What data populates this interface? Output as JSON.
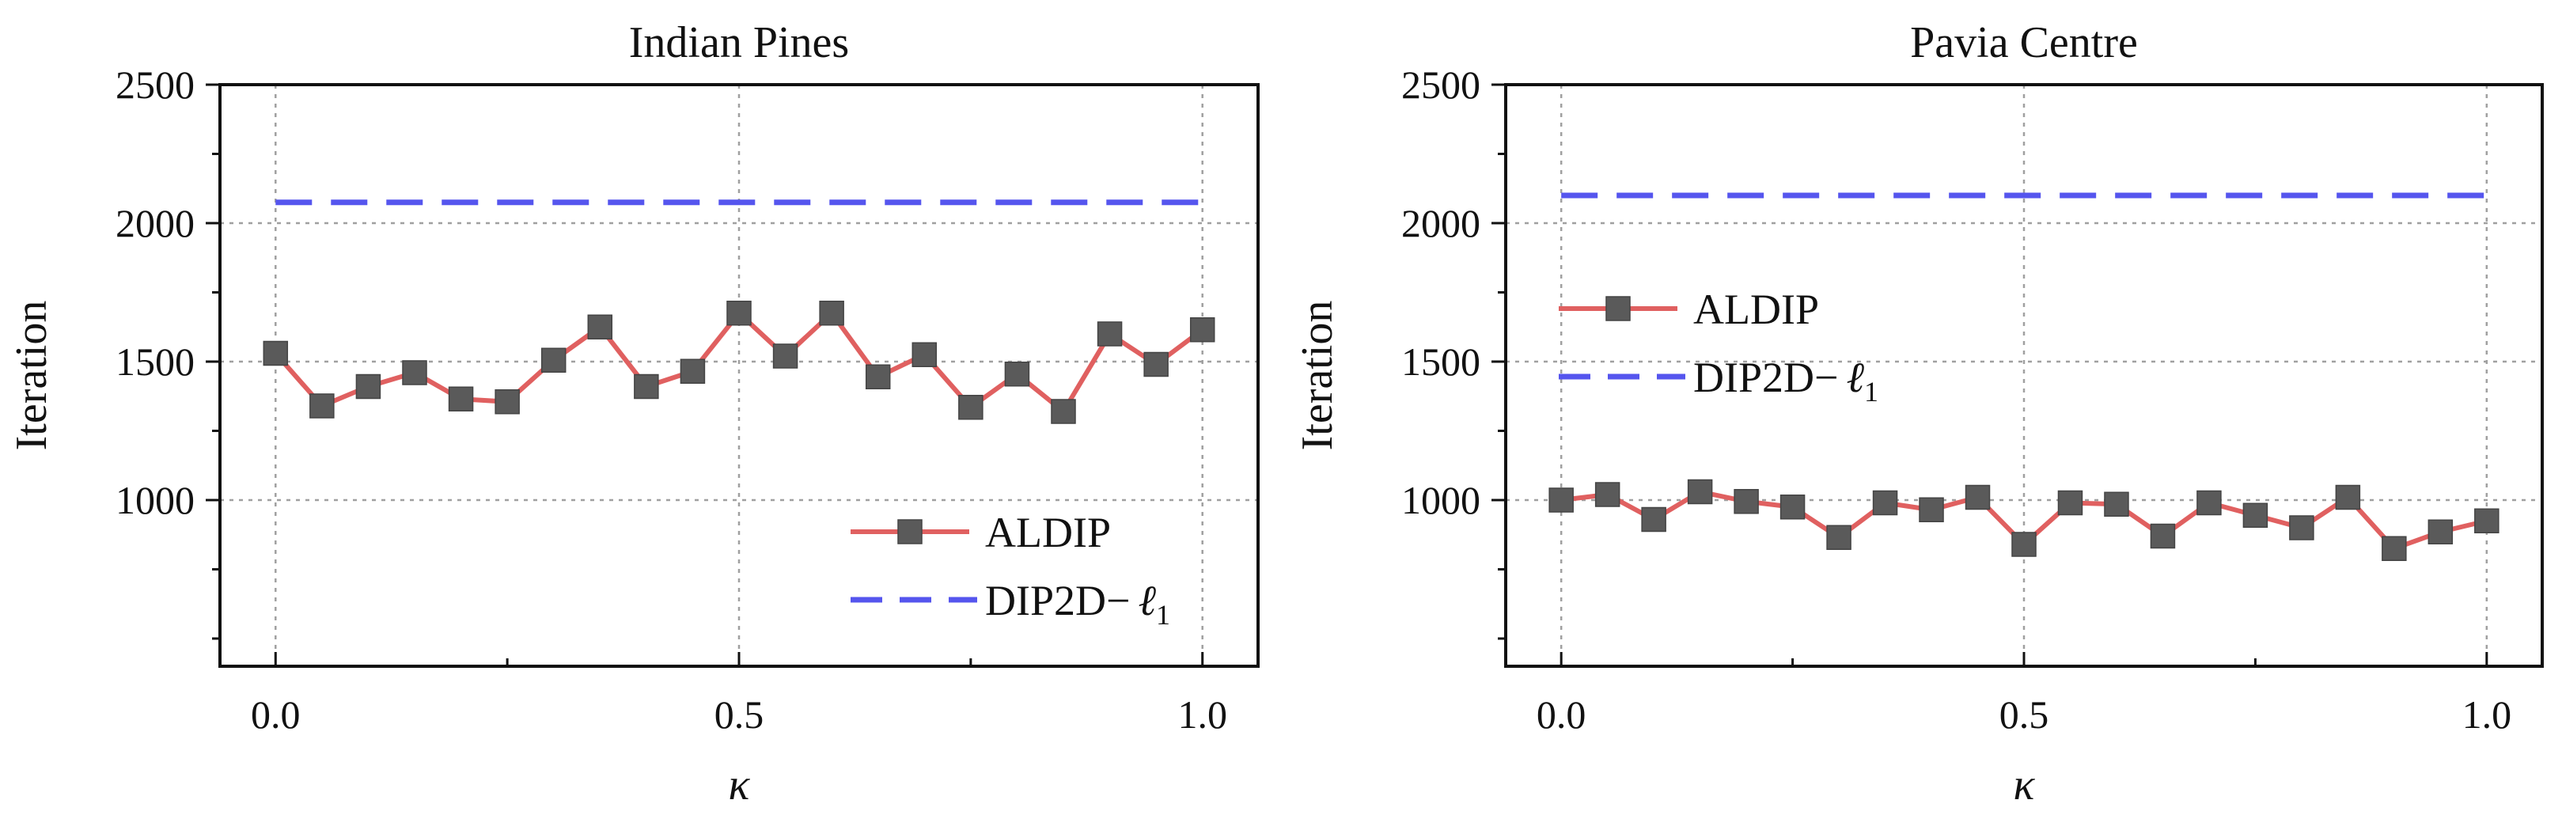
{
  "chart_data": [
    {
      "type": "line",
      "title": "Indian Pines",
      "xlabel": "κ",
      "ylabel": "Iteration",
      "xlim": [
        -0.06,
        1.06
      ],
      "ylim": [
        400,
        2500
      ],
      "xticks": [
        "0.0",
        "0.5",
        "1.0"
      ],
      "yticks": [
        "1000",
        "1500",
        "2000",
        "2500"
      ],
      "grid": true,
      "legend_position": "bottom-right",
      "x": [
        0.0,
        0.05,
        0.1,
        0.15,
        0.2,
        0.25,
        0.3,
        0.35,
        0.4,
        0.45,
        0.5,
        0.55,
        0.6,
        0.65,
        0.7,
        0.75,
        0.8,
        0.85,
        0.9,
        0.95,
        1.0
      ],
      "series": [
        {
          "name": "ALDIP",
          "style": "line-square",
          "color": "#e06060",
          "marker_color": "#5a5a5a",
          "values": [
            1530,
            1340,
            1410,
            1460,
            1365,
            1355,
            1505,
            1625,
            1410,
            1465,
            1675,
            1520,
            1675,
            1445,
            1525,
            1335,
            1455,
            1320,
            1600,
            1490,
            1615
          ]
        },
        {
          "name": "DIP2D−",
          "name_suffix": "ℓ",
          "name_sub": "1",
          "style": "dashed",
          "color": "#5555ee",
          "constant": 2075
        }
      ]
    },
    {
      "type": "line",
      "title": "Pavia Centre",
      "xlabel": "κ",
      "ylabel": "Iteration",
      "xlim": [
        -0.06,
        1.06
      ],
      "ylim": [
        400,
        2500
      ],
      "xticks": [
        "0.0",
        "0.5",
        "1.0"
      ],
      "yticks": [
        "1000",
        "1500",
        "2000",
        "2500"
      ],
      "grid": true,
      "legend_position": "center-left",
      "x": [
        0.0,
        0.05,
        0.1,
        0.15,
        0.2,
        0.25,
        0.3,
        0.35,
        0.4,
        0.45,
        0.5,
        0.55,
        0.6,
        0.65,
        0.7,
        0.75,
        0.8,
        0.85,
        0.9,
        0.95,
        1.0
      ],
      "series": [
        {
          "name": "ALDIP",
          "style": "line-square",
          "color": "#e06060",
          "marker_color": "#5a5a5a",
          "values": [
            1000,
            1020,
            930,
            1030,
            995,
            975,
            865,
            990,
            965,
            1010,
            840,
            990,
            985,
            870,
            990,
            945,
            900,
            1010,
            825,
            885,
            925
          ]
        },
        {
          "name": "DIP2D−",
          "name_suffix": "ℓ",
          "name_sub": "1",
          "style": "dashed",
          "color": "#5555ee",
          "constant": 2100
        }
      ]
    }
  ]
}
